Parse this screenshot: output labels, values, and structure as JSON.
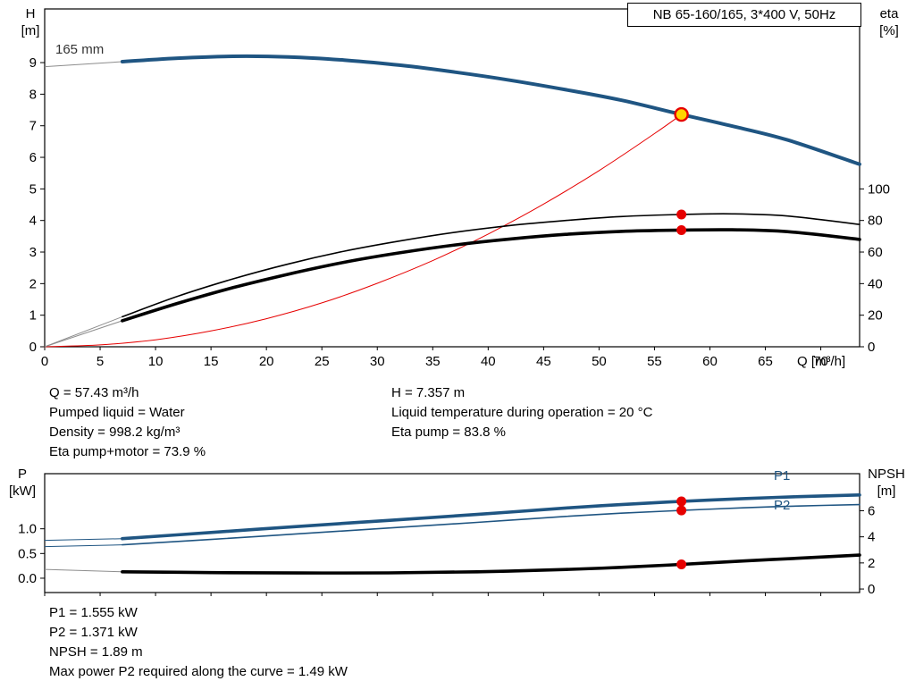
{
  "chart_data": [
    {
      "type": "line",
      "title": "NB 65-160/165, 3*400 V, 50Hz",
      "annotation": "165 mm",
      "xlabel": "Q [m³/h]",
      "xlim": [
        0,
        73.5
      ],
      "x_ticks": [
        0,
        5,
        10,
        15,
        20,
        25,
        30,
        35,
        40,
        45,
        50,
        55,
        60,
        65,
        70
      ],
      "x_tick_labels": [
        "0",
        "5",
        "10",
        "15",
        "20",
        "25",
        "30",
        "35",
        "40",
        "45",
        "50",
        "55",
        "60",
        "65",
        "70"
      ],
      "show_x_tick_labels": true,
      "grid": false,
      "left_axis": {
        "label_lines": [
          "H",
          "[m]"
        ],
        "lim": [
          0,
          10.7
        ],
        "ticks": [
          0,
          1,
          2,
          3,
          4,
          5,
          6,
          7,
          8,
          9
        ],
        "tick_labels": [
          "0",
          "1",
          "2",
          "3",
          "4",
          "5",
          "6",
          "7",
          "8",
          "9"
        ]
      },
      "right_axis": {
        "label_lines": [
          "eta",
          "[%]"
        ],
        "lim": [
          0,
          214
        ],
        "ticks": [
          0,
          20,
          40,
          60,
          80,
          100
        ],
        "tick_labels": [
          "0",
          "20",
          "40",
          "60",
          "80",
          "100"
        ]
      },
      "series": [
        {
          "name": "h-curve-165mm",
          "axis": "left",
          "color": "#1f5582",
          "width": 4,
          "lead_from": [
            0,
            8.87
          ],
          "lead_color": "#8c8c8c",
          "points": [
            [
              7,
              9.03
            ],
            [
              12,
              9.14
            ],
            [
              17,
              9.2
            ],
            [
              22,
              9.18
            ],
            [
              27,
              9.08
            ],
            [
              32,
              8.92
            ],
            [
              37,
              8.7
            ],
            [
              42,
              8.44
            ],
            [
              47,
              8.14
            ],
            [
              52,
              7.81
            ],
            [
              57.43,
              7.357
            ],
            [
              62,
              6.99
            ],
            [
              67,
              6.55
            ],
            [
              73.5,
              5.78
            ]
          ]
        },
        {
          "name": "system-curve",
          "axis": "left",
          "color": "#e60000",
          "width": 1,
          "points": [
            [
              0,
              0
            ],
            [
              5,
              0.06
            ],
            [
              10,
              0.22
            ],
            [
              15,
              0.5
            ],
            [
              20,
              0.89
            ],
            [
              25,
              1.39
            ],
            [
              30,
              2.01
            ],
            [
              35,
              2.73
            ],
            [
              40,
              3.57
            ],
            [
              45,
              4.52
            ],
            [
              50,
              5.58
            ],
            [
              55,
              6.75
            ],
            [
              57.43,
              7.357
            ]
          ]
        },
        {
          "name": "eta-pump-curve",
          "axis": "right",
          "color": "#000000",
          "width": 1.6,
          "lead_from": [
            0,
            0
          ],
          "lead_color": "#8c8c8c",
          "points": [
            [
              7,
              19
            ],
            [
              12,
              32
            ],
            [
              17,
              43
            ],
            [
              22,
              52.5
            ],
            [
              27,
              60.5
            ],
            [
              32,
              67
            ],
            [
              37,
              72.5
            ],
            [
              42,
              76.8
            ],
            [
              47,
              80
            ],
            [
              52,
              82.5
            ],
            [
              57.43,
              83.8
            ],
            [
              62,
              84.2
            ],
            [
              67,
              82.8
            ],
            [
              73.5,
              77.5
            ]
          ]
        },
        {
          "name": "eta-pump-motor-curve",
          "axis": "right",
          "color": "#000000",
          "width": 3.6,
          "lead_from": [
            0,
            0
          ],
          "lead_color": "#8c8c8c",
          "points": [
            [
              7,
              16.5
            ],
            [
              12,
              27.5
            ],
            [
              17,
              37.5
            ],
            [
              22,
              46
            ],
            [
              27,
              53.5
            ],
            [
              32,
              59.5
            ],
            [
              37,
              64.5
            ],
            [
              42,
              68.3
            ],
            [
              47,
              71.2
            ],
            [
              52,
              73.1
            ],
            [
              57.43,
              73.9
            ],
            [
              62,
              74.1
            ],
            [
              67,
              72.9
            ],
            [
              73.5,
              68
            ]
          ]
        }
      ],
      "markers": [
        {
          "name": "duty-point",
          "axis": "left",
          "x": 57.43,
          "y": 7.357,
          "r": 7,
          "fill": "#ffd500",
          "stroke": "#e60000",
          "stroke_width": 2.4
        },
        {
          "name": "eta-pump-point",
          "axis": "right",
          "x": 57.43,
          "y": 83.8,
          "r": 5.5,
          "fill": "#e60000"
        },
        {
          "name": "eta-pump-motor-point",
          "axis": "right",
          "x": 57.43,
          "y": 73.9,
          "r": 5.5,
          "fill": "#e60000"
        }
      ]
    },
    {
      "type": "line",
      "xlim": [
        0,
        73.5
      ],
      "x_ticks": [
        0,
        5,
        10,
        15,
        20,
        25,
        30,
        35,
        40,
        45,
        50,
        55,
        60,
        65,
        70
      ],
      "x_tick_labels": [
        "0",
        "5",
        "10",
        "15",
        "20",
        "25",
        "30",
        "35",
        "40",
        "45",
        "50",
        "55",
        "60",
        "65",
        "70"
      ],
      "show_x_tick_labels": false,
      "grid": false,
      "left_axis": {
        "label_lines": [
          "P",
          "[kW]"
        ],
        "lim": [
          -0.29,
          2.115
        ],
        "ticks": [
          0,
          0.5,
          1
        ],
        "tick_labels": [
          "0.0",
          "0.5",
          "1.0"
        ]
      },
      "right_axis": {
        "label_lines": [
          "NPSH",
          "[m]"
        ],
        "lim": [
          -0.27,
          8.84
        ],
        "ticks": [
          0,
          2,
          4,
          6
        ],
        "tick_labels": [
          "0",
          "2",
          "4",
          "6"
        ]
      },
      "series": [
        {
          "name": "p1-curve",
          "label": "P1",
          "axis": "left",
          "color": "#1f5582",
          "width": 3.6,
          "lead_from": [
            0,
            0.765
          ],
          "points": [
            [
              7,
              0.8
            ],
            [
              15,
              0.925
            ],
            [
              23,
              1.05
            ],
            [
              31,
              1.17
            ],
            [
              39,
              1.29
            ],
            [
              47,
              1.42
            ],
            [
              52,
              1.49
            ],
            [
              57.43,
              1.555
            ],
            [
              63,
              1.61
            ],
            [
              68,
              1.65
            ],
            [
              73.5,
              1.685
            ]
          ]
        },
        {
          "name": "p2-curve",
          "label": "P2",
          "axis": "left",
          "color": "#1f5582",
          "width": 1.6,
          "lead_from": [
            0,
            0.64
          ],
          "points": [
            [
              7,
              0.675
            ],
            [
              15,
              0.785
            ],
            [
              23,
              0.9
            ],
            [
              31,
              1.015
            ],
            [
              39,
              1.13
            ],
            [
              47,
              1.25
            ],
            [
              52,
              1.315
            ],
            [
              57.43,
              1.371
            ],
            [
              63,
              1.425
            ],
            [
              68,
              1.46
            ],
            [
              73.5,
              1.49
            ]
          ]
        },
        {
          "name": "npsh-curve",
          "label": "NPSH",
          "axis": "right",
          "color": "#000000",
          "width": 3.6,
          "lead_from": [
            0,
            1.5
          ],
          "lead_color": "#8c8c8c",
          "points": [
            [
              7,
              1.32
            ],
            [
              15,
              1.26
            ],
            [
              23,
              1.23
            ],
            [
              31,
              1.24
            ],
            [
              39,
              1.32
            ],
            [
              47,
              1.5
            ],
            [
              52,
              1.66
            ],
            [
              57.43,
              1.89
            ],
            [
              63,
              2.15
            ],
            [
              68,
              2.36
            ],
            [
              73.5,
              2.6
            ]
          ]
        }
      ],
      "markers": [
        {
          "name": "p1-point",
          "axis": "left",
          "x": 57.43,
          "y": 1.555,
          "r": 5.5,
          "fill": "#e60000"
        },
        {
          "name": "p2-point",
          "axis": "left",
          "x": 57.43,
          "y": 1.371,
          "r": 5.5,
          "fill": "#e60000"
        },
        {
          "name": "npsh-point",
          "axis": "right",
          "x": 57.43,
          "y": 1.89,
          "r": 5.5,
          "fill": "#e60000"
        }
      ]
    }
  ],
  "info_top": {
    "left": [
      "Q = 57.43 m³/h",
      "Pumped liquid = Water",
      "Density = 998.2 kg/m³",
      "Eta pump+motor = 73.9 %"
    ],
    "right": [
      "H = 7.357 m",
      "Liquid temperature during operation = 20 °C",
      "Eta pump = 83.8 %"
    ]
  },
  "info_bottom": [
    "P1 = 1.555 kW",
    "P2 = 1.371 kW",
    "NPSH = 1.89 m",
    "Max power P2 required along the curve = 1.49 kW"
  ],
  "colors": {
    "curve_blue": "#1f5582",
    "marker_red": "#e60000",
    "duty_yellow": "#ffd500"
  }
}
